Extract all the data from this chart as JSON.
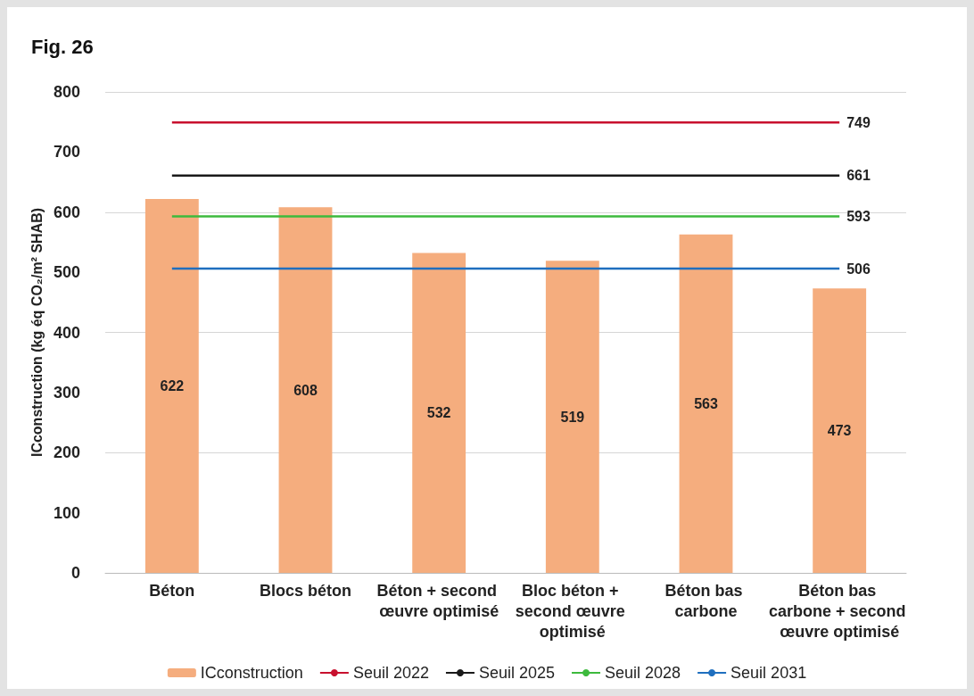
{
  "chart_data": {
    "type": "bar",
    "title": "Fig. 26",
    "ylabel": "ICconstruction (kg éq CO₂/m² SHAB)",
    "categories": [
      "Béton",
      "Blocs béton",
      "Béton + second œuvre optimisé",
      "Bloc béton + second œuvre optimisé",
      "Béton bas carbone",
      "Béton bas carbone + second œuvre optimisé"
    ],
    "series": [
      {
        "name": "ICconstruction",
        "color": "#f5ad7e",
        "values": [
          622,
          608,
          532,
          519,
          563,
          473
        ],
        "data_labels": true
      },
      {
        "name": "Seuil 2022",
        "type": "line",
        "color": "#c8102e",
        "values": [
          749,
          749,
          749,
          749,
          749,
          749
        ],
        "value_labels": [
          null,
          null,
          null,
          null,
          null,
          "749"
        ]
      },
      {
        "name": "Seuil 2025",
        "type": "line",
        "color": "#1a1a1a",
        "values": [
          661,
          661,
          661,
          661,
          661,
          661
        ],
        "value_labels": [
          null,
          null,
          null,
          null,
          null,
          "661"
        ]
      },
      {
        "name": "Seuil 2028",
        "type": "line",
        "color": "#3dba3d",
        "values": [
          593,
          593,
          593,
          593,
          593,
          593
        ],
        "value_labels": [
          null,
          null,
          null,
          null,
          null,
          "593"
        ]
      },
      {
        "name": "Seuil 2031",
        "type": "line",
        "color": "#1f6fbf",
        "values": [
          506,
          506,
          506,
          506,
          506,
          506
        ],
        "value_labels": [
          null,
          null,
          null,
          null,
          null,
          "506"
        ]
      }
    ],
    "ylim": [
      0,
      800
    ],
    "yticks": [
      0,
      100,
      200,
      300,
      400,
      500,
      600,
      700,
      800
    ],
    "grid": "y",
    "legend": "bottom",
    "marker": "none"
  }
}
